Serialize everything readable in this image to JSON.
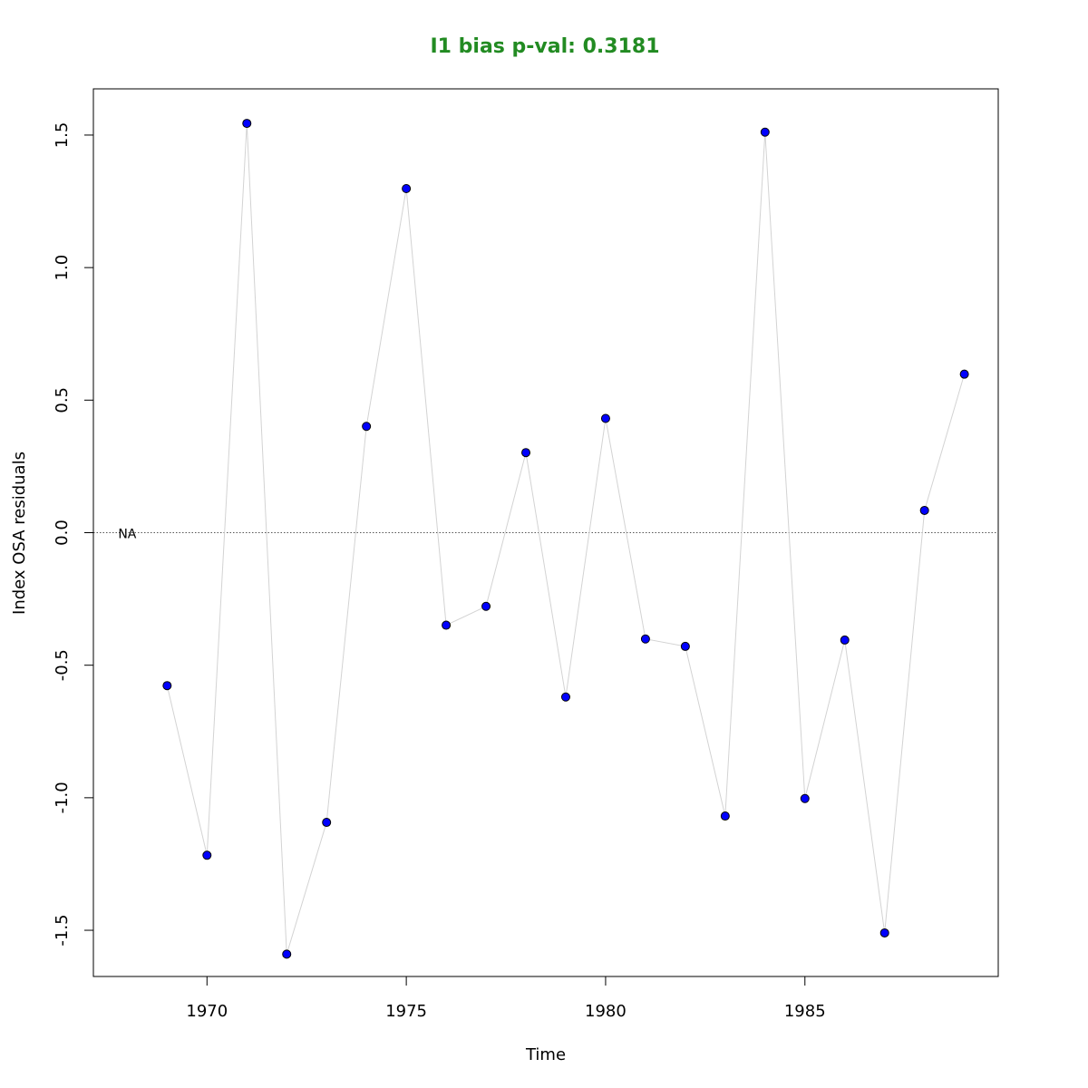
{
  "chart_data": {
    "type": "scatter",
    "title": "I1 bias p-val: 0.3181",
    "title_color": "#228B22",
    "xlabel": "Time",
    "ylabel": "Index OSA residuals",
    "xlim": [
      1967.15,
      1989.85
    ],
    "ylim": [
      -1.6743,
      1.6743
    ],
    "x_ticks": [
      1970,
      1975,
      1980,
      1985
    ],
    "y_ticks": [
      -1.5,
      -1.0,
      -0.5,
      0.0,
      0.5,
      1.0,
      1.5
    ],
    "y_tick_labels": [
      "-1.5",
      "-1.0",
      "-0.5",
      "0.0",
      "0.5",
      "1.0",
      "1.5"
    ],
    "reference_line_y": 0,
    "reference_label": "NA",
    "reference_label_x": 1968.0,
    "point_color": "#0000FF",
    "line_color": "#d3d3d3",
    "series": [
      {
        "x": [
          1969,
          1970,
          1971,
          1972,
          1973,
          1974,
          1975,
          1976,
          1977,
          1978,
          1979,
          1980,
          1981,
          1982,
          1983,
          1984,
          1985,
          1986,
          1987,
          1988,
          1989
        ],
        "values": [
          -0.577,
          -1.217,
          1.544,
          -1.59,
          -1.093,
          0.401,
          1.298,
          -0.349,
          -0.278,
          0.302,
          -0.62,
          0.431,
          -0.401,
          -0.429,
          -1.069,
          1.511,
          -1.003,
          -0.405,
          -1.51,
          0.084,
          0.598
        ]
      }
    ]
  }
}
